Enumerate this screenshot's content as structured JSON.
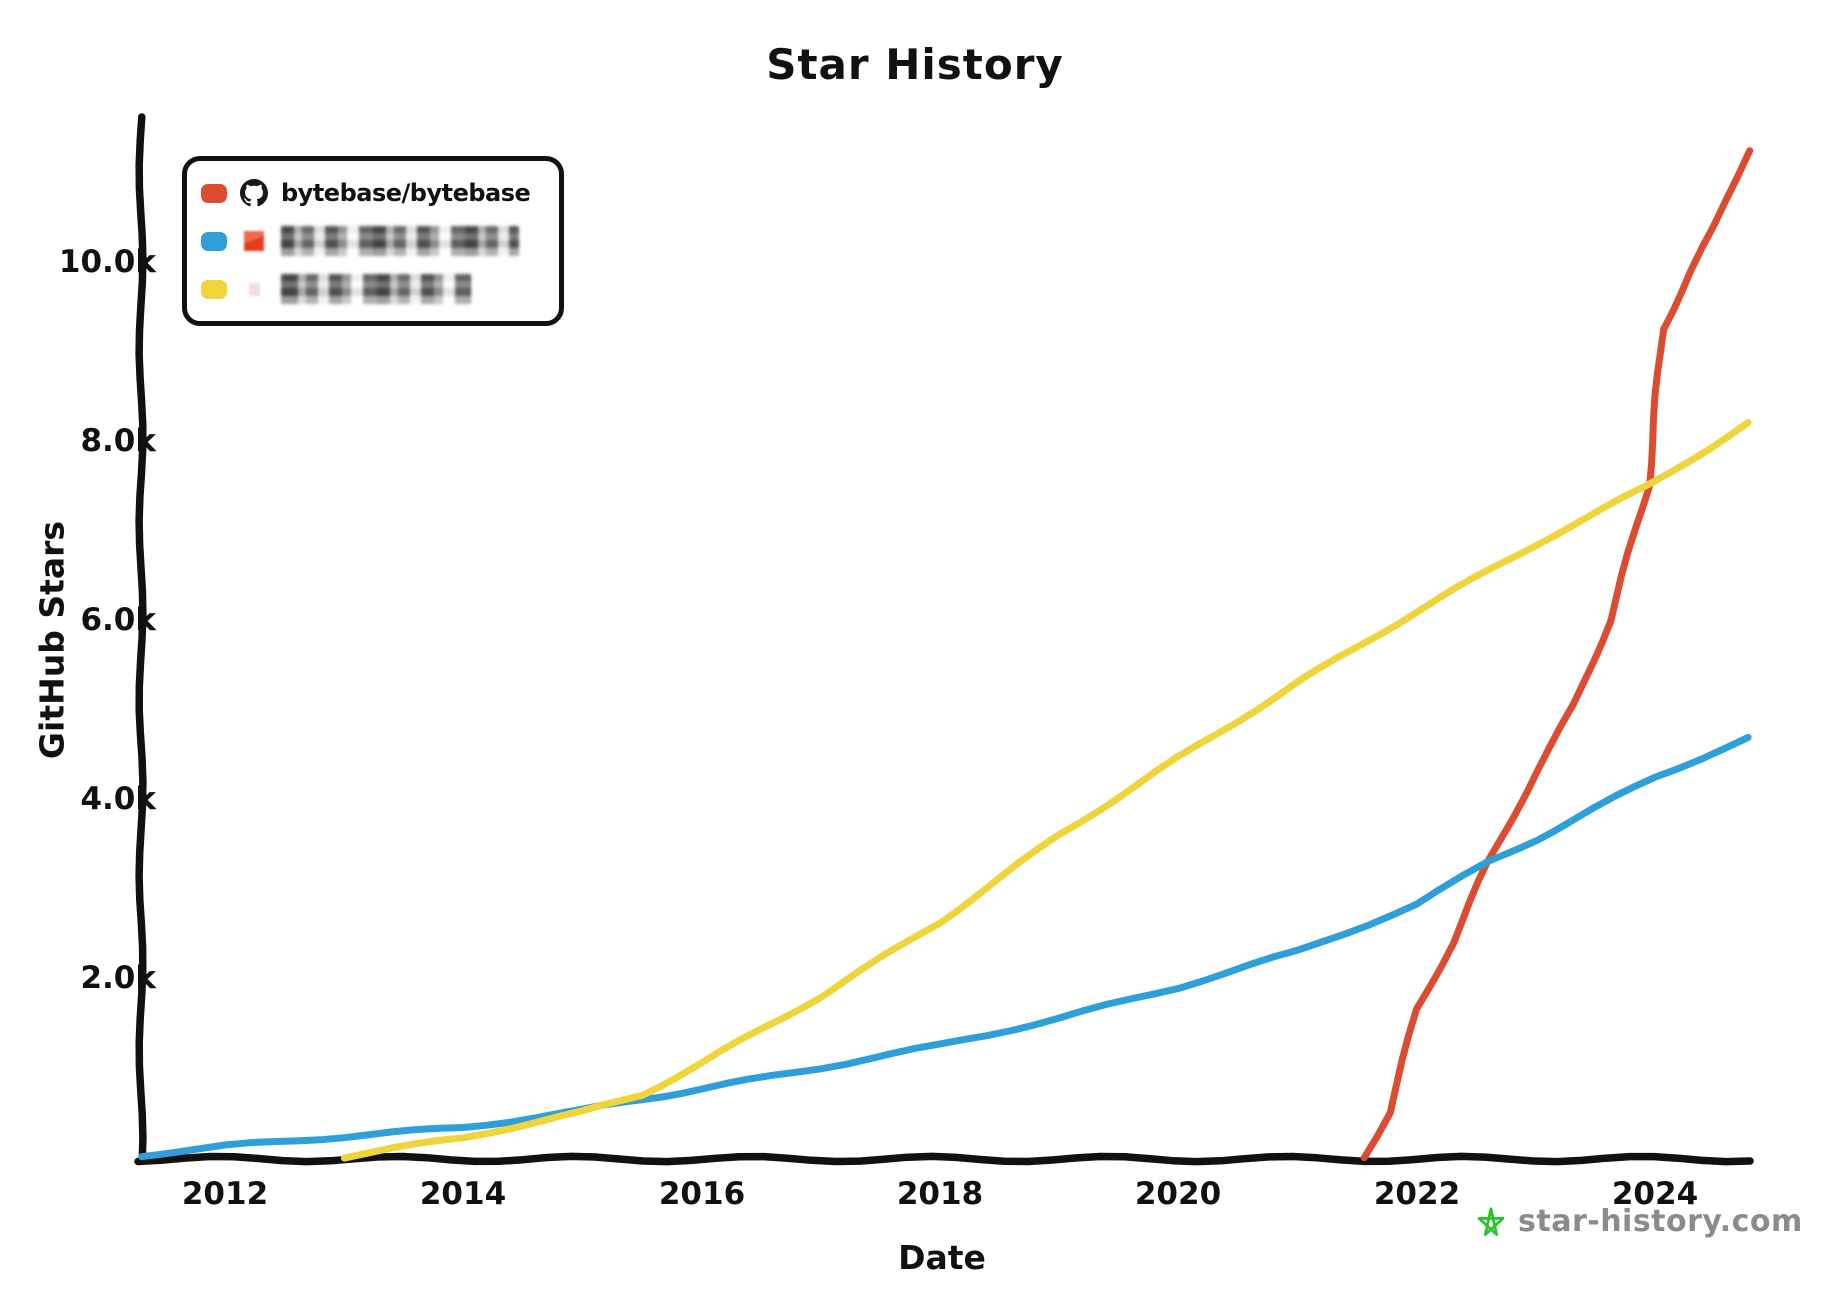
{
  "title": "Star History",
  "x_axis": {
    "label": "Date",
    "ticks": [
      "2012",
      "2014",
      "2016",
      "2018",
      "2020",
      "2022",
      "2024"
    ]
  },
  "y_axis": {
    "label": "GitHub Stars",
    "ticks": [
      "2.0k",
      "4.0k",
      "6.0k",
      "8.0k",
      "10.0k"
    ]
  },
  "legend": [
    {
      "label": "bytebase/bytebase",
      "color": "#db4c31",
      "icon": "github-octocat-icon",
      "redacted": false
    },
    {
      "label": "",
      "color": "#2f9fda",
      "icon": "avatar-redacted-orange",
      "redacted": true
    },
    {
      "label": "",
      "color": "#f0d43c",
      "icon": "avatar-redacted-pink",
      "redacted": true
    }
  ],
  "watermark": {
    "text": "star-history.com",
    "icon": "star-icon",
    "icon_color": "#23c623",
    "text_color": "#8b8b8b"
  },
  "chart_data": {
    "type": "line",
    "title": "Star History",
    "xlabel": "Date",
    "ylabel": "GitHub Stars",
    "x_range": [
      2011.3,
      2024.8
    ],
    "y_range": [
      0,
      11600
    ],
    "grid": false,
    "legend_position": "top-left",
    "x_unit": "year",
    "y_unit": "stars",
    "series": [
      {
        "name": "bytebase/bytebase",
        "color": "#db4c31",
        "points": [
          [
            2021.55,
            0
          ],
          [
            2021.77,
            500
          ],
          [
            2022.0,
            1650
          ],
          [
            2022.3,
            2400
          ],
          [
            2022.6,
            3300
          ],
          [
            2022.8,
            3800
          ],
          [
            2023.0,
            4300
          ],
          [
            2023.32,
            5050
          ],
          [
            2023.62,
            6000
          ],
          [
            2023.94,
            7500
          ],
          [
            2024.06,
            9250
          ],
          [
            2024.3,
            9900
          ],
          [
            2024.5,
            10400
          ],
          [
            2024.78,
            11250
          ]
        ]
      },
      {
        "name": "(redacted)",
        "color": "#2f9fda",
        "points": [
          [
            2011.3,
            20
          ],
          [
            2012,
            120
          ],
          [
            2013,
            230
          ],
          [
            2014,
            330
          ],
          [
            2015,
            520
          ],
          [
            2015.5,
            650
          ],
          [
            2016,
            760
          ],
          [
            2017,
            1000
          ],
          [
            2018,
            1250
          ],
          [
            2019,
            1550
          ],
          [
            2020,
            1900
          ],
          [
            2021,
            2300
          ],
          [
            2022,
            2820
          ],
          [
            2022.6,
            3300
          ],
          [
            2023,
            3550
          ],
          [
            2024,
            4250
          ],
          [
            2024.78,
            4680
          ]
        ]
      },
      {
        "name": "(redacted)",
        "color": "#f0d43c",
        "points": [
          [
            2013.0,
            0
          ],
          [
            2014,
            220
          ],
          [
            2015,
            500
          ],
          [
            2015.5,
            700
          ],
          [
            2016,
            1050
          ],
          [
            2017,
            1800
          ],
          [
            2018,
            2630
          ],
          [
            2019,
            3600
          ],
          [
            2020,
            4460
          ],
          [
            2021,
            5300
          ],
          [
            2022,
            6100
          ],
          [
            2023,
            6850
          ],
          [
            2023.94,
            7500
          ],
          [
            2024.78,
            8200
          ]
        ]
      }
    ]
  }
}
